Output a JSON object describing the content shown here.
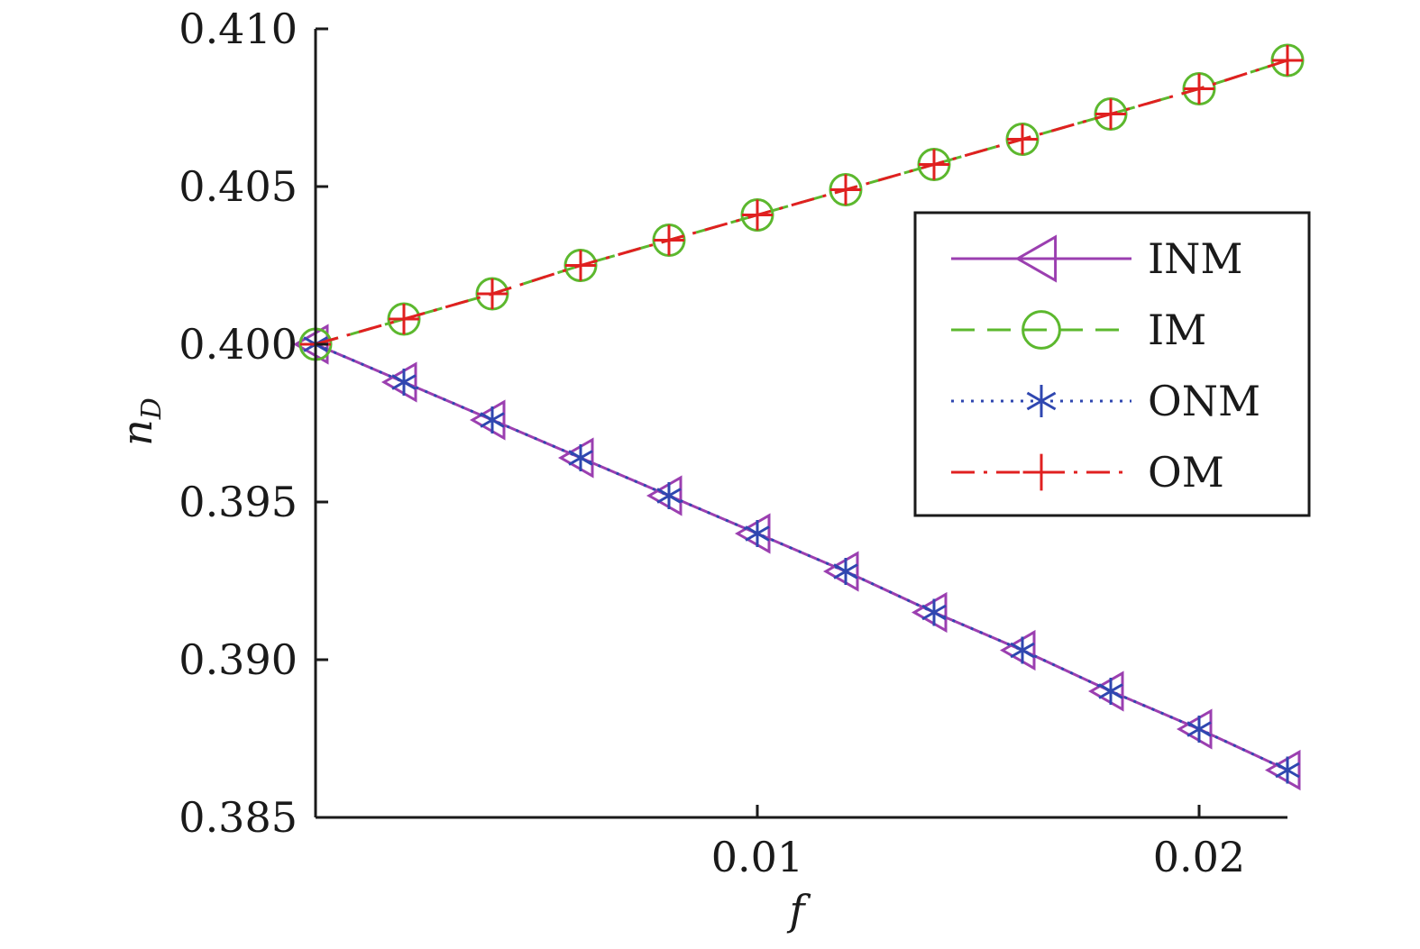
{
  "chart_data": {
    "type": "line",
    "xlabel": "f",
    "ylabel": "n",
    "ylabel_subscript": "D",
    "xlim": [
      0,
      0.022
    ],
    "ylim": [
      0.385,
      0.41
    ],
    "xticks": [
      0.01,
      0.02
    ],
    "xtick_labels": [
      "0.01",
      "0.02"
    ],
    "yticks": [
      0.385,
      0.39,
      0.395,
      0.4,
      0.405,
      0.41
    ],
    "ytick_labels": [
      "0.385",
      "0.390",
      "0.395",
      "0.400",
      "0.405",
      "0.410"
    ],
    "grid": false,
    "legend_position": "right",
    "x": [
      0,
      0.002,
      0.004,
      0.006,
      0.008,
      0.01,
      0.012,
      0.014,
      0.016,
      0.018,
      0.02,
      0.022
    ],
    "series": [
      {
        "name": "INM",
        "color": "#9b3fb0",
        "line_style": "solid",
        "marker": "triangle-left",
        "values": [
          0.4,
          0.3988,
          0.3976,
          0.3964,
          0.3952,
          0.394,
          0.3928,
          0.3915,
          0.3903,
          0.389,
          0.3878,
          0.3865
        ]
      },
      {
        "name": "IM",
        "color": "#5cb82e",
        "line_style": "dashed",
        "marker": "circle",
        "values": [
          0.4,
          0.4008,
          0.4016,
          0.4025,
          0.4033,
          0.4041,
          0.4049,
          0.4057,
          0.4065,
          0.4073,
          0.4081,
          0.409
        ]
      },
      {
        "name": "ONM",
        "color": "#2f47b0",
        "line_style": "dotted",
        "marker": "asterisk",
        "values": [
          0.4,
          0.3988,
          0.3976,
          0.3964,
          0.3952,
          0.394,
          0.3928,
          0.3915,
          0.3903,
          0.389,
          0.3878,
          0.3865
        ]
      },
      {
        "name": "OM",
        "color": "#e02020",
        "line_style": "dashdot",
        "marker": "plus",
        "values": [
          0.4,
          0.4008,
          0.4016,
          0.4025,
          0.4033,
          0.4041,
          0.4049,
          0.4057,
          0.4065,
          0.4073,
          0.4081,
          0.409
        ]
      }
    ]
  }
}
